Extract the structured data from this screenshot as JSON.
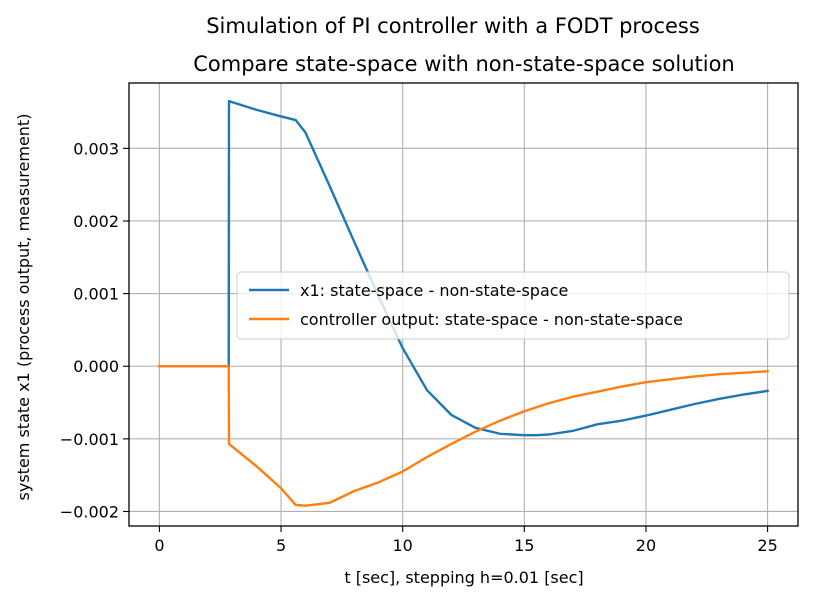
{
  "figure": {
    "suptitle": "Simulation of PI controller with a FODT process",
    "title": "Compare state-space with non-state-space solution"
  },
  "chart_data": {
    "type": "line",
    "title": "Compare state-space with non-state-space solution",
    "xlabel": "t [sec], stepping h=0.01 [sec]",
    "ylabel": "system state x1 (process output, measurement)",
    "xlim": [
      -1.25,
      26.25
    ],
    "ylim": [
      -0.0022,
      0.0039
    ],
    "xticks": [
      0,
      5,
      10,
      15,
      20,
      25
    ],
    "xtick_labels": [
      "0",
      "5",
      "10",
      "15",
      "20",
      "25"
    ],
    "yticks": [
      -0.002,
      -0.001,
      0.0,
      0.001,
      0.002,
      0.003
    ],
    "ytick_labels": [
      "−0.002",
      "−0.001",
      "0.000",
      "0.001",
      "0.002",
      "0.003"
    ],
    "grid": true,
    "legend_position": "center-right",
    "series": [
      {
        "name": "x1: state-space - non-state-space",
        "color": "#1f77b4",
        "x": [
          0,
          2.85,
          2.86,
          4,
          5,
          5.6,
          6,
          7,
          8,
          9,
          10,
          11,
          12,
          13,
          14,
          15,
          15.5,
          16,
          17,
          18,
          19,
          20,
          21,
          22,
          23,
          24,
          25
        ],
        "y": [
          0,
          0,
          0.00365,
          0.00353,
          0.00344,
          0.00339,
          0.00322,
          0.00248,
          0.00172,
          0.00097,
          0.00025,
          -0.00033,
          -0.00067,
          -0.00085,
          -0.00093,
          -0.00095,
          -0.00095,
          -0.00094,
          -0.00089,
          -0.0008,
          -0.00075,
          -0.00068,
          -0.0006,
          -0.00052,
          -0.00045,
          -0.00039,
          -0.00034
        ]
      },
      {
        "name": "controller output: state-space - non-state-space",
        "color": "#ff7f0e",
        "x": [
          0,
          2.85,
          2.86,
          4,
          5,
          5.6,
          6,
          7,
          8,
          9,
          10,
          11,
          12,
          13,
          14,
          15,
          16,
          17,
          18,
          19,
          20,
          21,
          22,
          23,
          24,
          25
        ],
        "y": [
          0,
          0,
          -0.00107,
          -0.00138,
          -0.00168,
          -0.00191,
          -0.00192,
          -0.00188,
          -0.00172,
          -0.0016,
          -0.00145,
          -0.00125,
          -0.00107,
          -0.0009,
          -0.00075,
          -0.00062,
          -0.00051,
          -0.00042,
          -0.00035,
          -0.00028,
          -0.00022,
          -0.00018,
          -0.00014,
          -0.00011,
          -9e-05,
          -7e-05
        ]
      }
    ]
  }
}
